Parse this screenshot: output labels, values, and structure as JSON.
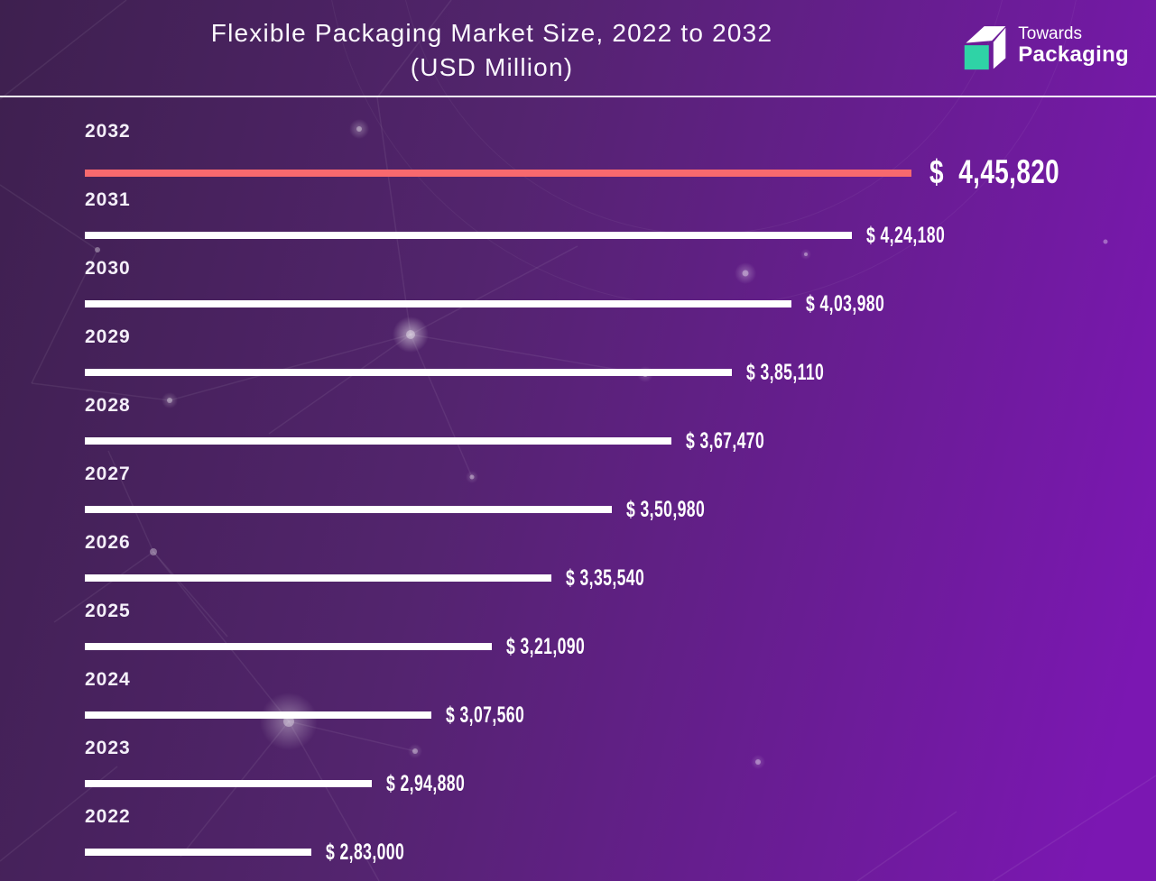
{
  "header": {
    "title_line1": "Flexible Packaging Market Size, 2022 to 2032",
    "title_line2": "(USD Million)",
    "logo": {
      "line1": "Towards",
      "line2": "Packaging",
      "icon": "cube-arrow-logo-icon"
    }
  },
  "colors": {
    "background_gradient": [
      "#3e204f",
      "#53246e",
      "#7b17b2"
    ],
    "bar_default": "#ffffff",
    "bar_highlight": "#f8696e",
    "logo_accent": "#2fd3a6",
    "text_primary": "#ffffff"
  },
  "chart_data": {
    "type": "bar",
    "orientation": "horizontal",
    "title": "Flexible Packaging Market Size, 2022 to 2032",
    "subtitle": "(USD Million)",
    "unit": "USD Million",
    "number_format": "indian-lakh-grouping",
    "grid": false,
    "axes_visible": false,
    "value_label_position": "end-of-bar",
    "highlighted_category": "2032",
    "categories": [
      "2032",
      "2031",
      "2030",
      "2029",
      "2028",
      "2027",
      "2026",
      "2025",
      "2024",
      "2023",
      "2022"
    ],
    "values": [
      445820,
      424180,
      403980,
      385110,
      367470,
      350980,
      335540,
      321090,
      307560,
      294880,
      283000
    ],
    "rows": [
      {
        "year": "2032",
        "value": 445820,
        "label": "$ 4,45,820",
        "highlight": true
      },
      {
        "year": "2031",
        "value": 424180,
        "label": "$ 4,24,180",
        "highlight": false
      },
      {
        "year": "2030",
        "value": 403980,
        "label": "$ 4,03,980",
        "highlight": false
      },
      {
        "year": "2029",
        "value": 385110,
        "label": "$ 3,85,110",
        "highlight": false
      },
      {
        "year": "2028",
        "value": 367470,
        "label": "$ 3,67,470",
        "highlight": false
      },
      {
        "year": "2027",
        "value": 350980,
        "label": "$ 3,50,980",
        "highlight": false
      },
      {
        "year": "2026",
        "value": 335540,
        "label": "$ 3,35,540",
        "highlight": false
      },
      {
        "year": "2025",
        "value": 321090,
        "label": "$ 3,21,090",
        "highlight": false
      },
      {
        "year": "2024",
        "value": 307560,
        "label": "$ 3,07,560",
        "highlight": false
      },
      {
        "year": "2023",
        "value": 294880,
        "label": "$ 2,94,880",
        "highlight": false
      },
      {
        "year": "2022",
        "value": 283000,
        "label": "$ 2,83,000",
        "highlight": false
      }
    ]
  }
}
